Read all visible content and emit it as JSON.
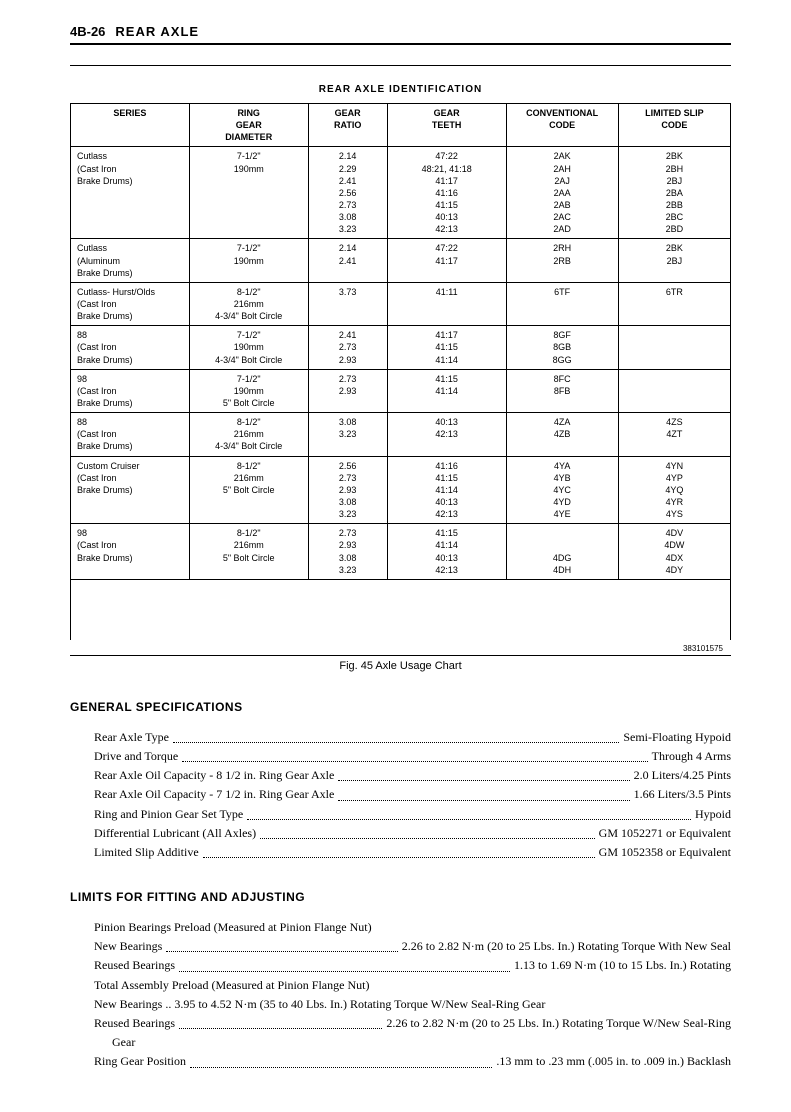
{
  "page_header": {
    "number": "4B-26",
    "title": "REAR AXLE"
  },
  "table": {
    "title": "REAR AXLE IDENTIFICATION",
    "ref_number": "383101575",
    "caption": "Fig. 45 Axle Usage Chart",
    "columns": [
      "SERIES",
      "RING GEAR DIAMETER",
      "GEAR RATIO",
      "GEAR TEETH",
      "CONVENTIONAL CODE",
      "LIMITED SLIP CODE"
    ],
    "rows": [
      {
        "series": "Cutlass\n(Cast Iron\nBrake Drums)",
        "ring": "7-1/2\"\n190mm",
        "ratio": "2.14\n2.29\n2.41\n2.56\n2.73\n3.08\n3.23",
        "teeth": "47:22\n48:21, 41:18\n41:17\n41:16\n41:15\n40:13\n42:13",
        "conv": "2AK\n2AH\n2AJ\n2AA\n2AB\n2AC\n2AD",
        "slip": "2BK\n2BH\n2BJ\n2BA\n2BB\n2BC\n2BD"
      },
      {
        "series": "Cutlass\n(Aluminum\nBrake Drums)",
        "ring": "7-1/2\"\n190mm",
        "ratio": "2.14\n2.41",
        "teeth": "47:22\n41:17",
        "conv": "2RH\n2RB",
        "slip": "2BK\n2BJ"
      },
      {
        "series": "Cutlass- Hurst/Olds\n(Cast Iron\nBrake Drums)",
        "ring": "8-1/2\"\n216mm\n4-3/4\" Bolt Circle",
        "ratio": "3.73",
        "teeth": "41:11",
        "conv": "6TF",
        "slip": "6TR"
      },
      {
        "series": "88\n(Cast Iron\nBrake Drums)",
        "ring": "7-1/2\"\n190mm\n4-3/4\" Bolt Circle",
        "ratio": "2.41\n2.73\n2.93",
        "teeth": "41:17\n41:15\n41:14",
        "conv": "8GF\n8GB\n8GG",
        "slip": ""
      },
      {
        "series": "98\n(Cast Iron\nBrake Drums)",
        "ring": "7-1/2\"\n190mm\n5\" Bolt Circle",
        "ratio": "2.73\n2.93",
        "teeth": "41:15\n41:14",
        "conv": "8FC\n8FB",
        "slip": ""
      },
      {
        "series": "88\n(Cast Iron\nBrake Drums)",
        "ring": "8-1/2\"\n216mm\n4-3/4\" Bolt Circle",
        "ratio": "3.08\n3.23",
        "teeth": "40:13\n42:13",
        "conv": "4ZA\n4ZB",
        "slip": "4ZS\n4ZT"
      },
      {
        "series": "Custom Cruiser\n(Cast Iron\nBrake Drums)",
        "ring": "8-1/2\"\n216mm\n5\" Bolt Circle",
        "ratio": "2.56\n2.73\n2.93\n3.08\n3.23",
        "teeth": "41:16\n41:15\n41:14\n40:13\n42:13",
        "conv": "4YA\n4YB\n4YC\n4YD\n4YE",
        "slip": "4YN\n4YP\n4YQ\n4YR\n4YS"
      },
      {
        "series": "98\n(Cast Iron\nBrake Drums)",
        "ring": "8-1/2\"\n216mm\n5\" Bolt Circle",
        "ratio": "2.73\n2.93\n3.08\n3.23",
        "teeth": "41:15\n41:14\n40:13\n42:13",
        "conv": "\n\n4DG\n4DH",
        "slip": "4DV\n4DW\n4DX\n4DY"
      }
    ]
  },
  "general_specs": {
    "heading": "GENERAL SPECIFICATIONS",
    "items": [
      {
        "label": "Rear Axle Type",
        "value": "Semi-Floating Hypoid"
      },
      {
        "label": "Drive and Torque",
        "value": "Through 4 Arms"
      },
      {
        "label": "Rear Axle Oil Capacity - 8 1/2 in. Ring Gear Axle",
        "value": "2.0 Liters/4.25 Pints"
      },
      {
        "label": "Rear Axle Oil Capacity - 7 1/2 in. Ring Gear Axle",
        "value": "1.66 Liters/3.5 Pints"
      },
      {
        "label": "Ring and Pinion Gear Set Type",
        "value": "Hypoid"
      },
      {
        "label": "Differential Lubricant (All Axles)",
        "value": "GM 1052271 or Equivalent"
      },
      {
        "label": "Limited Slip Additive",
        "value": "GM 1052358 or Equivalent"
      }
    ]
  },
  "limits": {
    "heading": "LIMITS FOR FITTING AND ADJUSTING",
    "items": [
      {
        "label": "Pinion Bearings Preload (Measured at Pinion Flange Nut)",
        "value": "",
        "plain": true
      },
      {
        "label": "New Bearings",
        "value": "2.26 to 2.82 N·m (20 to 25 Lbs. In.) Rotating Torque With New Seal"
      },
      {
        "label": "Reused Bearings",
        "value": "1.13 to 1.69 N·m (10 to 15 Lbs. In.) Rotating"
      },
      {
        "label": "Total Assembly Preload (Measured at Pinion Flange Nut)",
        "value": "",
        "plain": true
      },
      {
        "label": "New Bearings",
        "value": "3.95 to 4.52 N·m (35 to 40 Lbs. In.) Rotating Torque W/New Seal-Ring Gear",
        "tight": true
      },
      {
        "label": "Reused Bearings",
        "value": "2.26 to 2.82 N·m (20 to 25 Lbs. In.) Rotating Torque W/New Seal-Ring"
      },
      {
        "label": "Gear",
        "value": "",
        "plain": true,
        "cont": true
      },
      {
        "label": "Ring Gear Position",
        "value": ".13 mm to .23 mm (.005 in. to .009 in.) Backlash"
      }
    ]
  }
}
